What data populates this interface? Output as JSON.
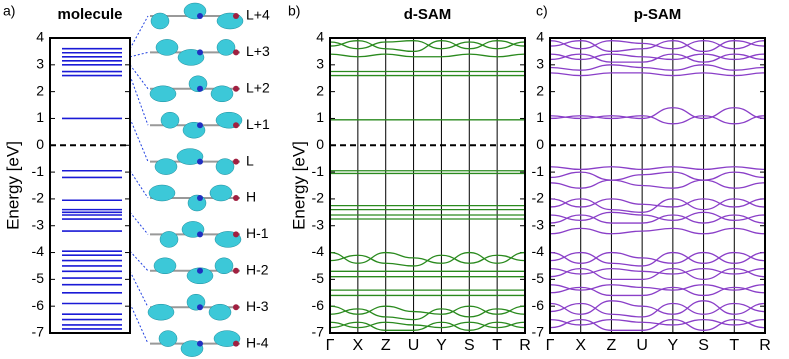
{
  "chart_data": [
    {
      "type": "levels",
      "panel_label": "a)",
      "title": "molecule",
      "ylabel": "Energy [eV]",
      "ylim": [
        -7,
        4
      ],
      "yticks": [
        -7,
        -6,
        -5,
        -4,
        -3,
        -2,
        -1,
        0,
        1,
        2,
        3,
        4
      ],
      "hline": 0,
      "color": "#1a1ad6",
      "values": [
        3.6,
        3.45,
        3.3,
        3.15,
        3.0,
        2.75,
        2.6,
        1.0,
        -0.95,
        -1.2,
        -2.05,
        -2.4,
        -2.5,
        -2.6,
        -2.75,
        -3.2,
        -3.95,
        -4.1,
        -4.3,
        -4.5,
        -4.7,
        -4.95,
        -5.2,
        -5.5,
        -5.9,
        -6.3,
        -6.5,
        -6.7,
        -6.85
      ],
      "orbital_labels": [
        "L+4",
        "L+3",
        "L+2",
        "L+1",
        "L",
        "H",
        "H-1",
        "H-2",
        "H-3",
        "H-4"
      ]
    },
    {
      "type": "bands",
      "panel_label": "b)",
      "title": "d-SAM",
      "ylabel": "Energy [eV]",
      "ylim": [
        -7,
        4
      ],
      "yticks": [
        -7,
        -6,
        -5,
        -4,
        -3,
        -2,
        -1,
        0,
        1,
        2,
        3,
        4
      ],
      "hline": 0,
      "color": "#2a8a1e",
      "categories": [
        "Γ",
        "X",
        "Z",
        "U",
        "Y",
        "S",
        "T",
        "R"
      ],
      "series": [
        {
          "values": [
            3.85,
            3.6,
            3.85,
            3.9,
            3.6,
            3.85,
            3.6,
            3.85
          ]
        },
        {
          "values": [
            3.7,
            3.9,
            3.6,
            3.5,
            3.9,
            3.6,
            3.9,
            3.7
          ]
        },
        {
          "values": [
            3.4,
            3.3,
            3.4,
            3.3,
            3.3,
            3.4,
            3.3,
            3.4
          ]
        },
        {
          "values": [
            2.75,
            2.75,
            2.75,
            2.75,
            2.75,
            2.75,
            2.75,
            2.75
          ]
        },
        {
          "values": [
            2.6,
            2.6,
            2.6,
            2.6,
            2.6,
            2.6,
            2.6,
            2.6
          ]
        },
        {
          "values": [
            0.95,
            0.95,
            0.95,
            0.95,
            0.95,
            0.95,
            0.95,
            0.95
          ]
        },
        {
          "values": [
            -0.95,
            -0.95,
            -0.95,
            -0.95,
            -0.95,
            -0.95,
            -0.95,
            -0.95
          ]
        },
        {
          "values": [
            -1.05,
            -1.05,
            -1.05,
            -1.05,
            -1.05,
            -1.05,
            -1.05,
            -1.05
          ]
        },
        {
          "values": [
            -2.25,
            -2.25,
            -2.25,
            -2.25,
            -2.25,
            -2.25,
            -2.25,
            -2.25
          ]
        },
        {
          "values": [
            -2.4,
            -2.4,
            -2.4,
            -2.4,
            -2.4,
            -2.4,
            -2.4,
            -2.4
          ]
        },
        {
          "values": [
            -2.6,
            -2.6,
            -2.6,
            -2.6,
            -2.6,
            -2.6,
            -2.6,
            -2.6
          ]
        },
        {
          "values": [
            -2.75,
            -2.75,
            -2.75,
            -2.75,
            -2.75,
            -2.75,
            -2.75,
            -2.75
          ]
        },
        {
          "values": [
            -4.0,
            -4.4,
            -4.0,
            -4.2,
            -4.4,
            -4.0,
            -4.4,
            -4.0
          ]
        },
        {
          "values": [
            -4.3,
            -4.1,
            -4.4,
            -4.5,
            -4.1,
            -4.4,
            -4.1,
            -4.3
          ]
        },
        {
          "values": [
            -4.7,
            -4.7,
            -4.7,
            -4.7,
            -4.7,
            -4.7,
            -4.7,
            -4.7
          ]
        },
        {
          "values": [
            -4.9,
            -4.9,
            -4.9,
            -4.9,
            -4.9,
            -4.9,
            -4.9,
            -4.9
          ]
        },
        {
          "values": [
            -5.4,
            -5.4,
            -5.4,
            -5.4,
            -5.4,
            -5.4,
            -5.4,
            -5.4
          ]
        },
        {
          "values": [
            -5.6,
            -5.6,
            -5.6,
            -5.6,
            -5.6,
            -5.6,
            -5.6,
            -5.6
          ]
        },
        {
          "values": [
            -6.0,
            -6.3,
            -6.0,
            -6.2,
            -6.3,
            -6.0,
            -6.3,
            -6.0
          ]
        },
        {
          "values": [
            -6.3,
            -6.1,
            -6.4,
            -6.5,
            -6.1,
            -6.4,
            -6.1,
            -6.3
          ]
        },
        {
          "values": [
            -6.6,
            -6.8,
            -6.6,
            -6.7,
            -6.8,
            -6.6,
            -6.8,
            -6.6
          ]
        },
        {
          "values": [
            -6.8,
            -6.6,
            -6.9,
            -6.9,
            -6.6,
            -6.9,
            -6.6,
            -6.8
          ]
        }
      ]
    },
    {
      "type": "bands",
      "panel_label": "c)",
      "title": "p-SAM",
      "ylim": [
        -7,
        4
      ],
      "yticks": [
        -7,
        -6,
        -5,
        -4,
        -3,
        -2,
        -1,
        0,
        1,
        2,
        3,
        4
      ],
      "hline": 0,
      "color": "#8a3fc8",
      "categories": [
        "Γ",
        "X",
        "Z",
        "U",
        "Y",
        "S",
        "T",
        "R"
      ],
      "series": [
        {
          "values": [
            3.9,
            3.6,
            3.9,
            3.8,
            3.6,
            3.9,
            3.6,
            3.9
          ]
        },
        {
          "values": [
            3.7,
            3.9,
            3.5,
            3.6,
            3.9,
            3.5,
            3.9,
            3.7
          ]
        },
        {
          "values": [
            3.4,
            3.2,
            3.4,
            3.3,
            3.2,
            3.4,
            3.2,
            3.4
          ]
        },
        {
          "values": [
            3.2,
            3.4,
            3.1,
            3.1,
            3.4,
            3.1,
            3.4,
            3.2
          ]
        },
        {
          "values": [
            2.9,
            2.8,
            3.0,
            2.9,
            2.8,
            3.0,
            2.8,
            2.9
          ]
        },
        {
          "values": [
            2.7,
            2.6,
            2.7,
            2.7,
            2.6,
            2.7,
            2.6,
            2.7
          ]
        },
        {
          "values": [
            1.1,
            1.0,
            1.1,
            1.0,
            1.4,
            1.0,
            1.4,
            1.0
          ]
        },
        {
          "values": [
            1.0,
            1.1,
            1.0,
            1.1,
            0.8,
            1.1,
            0.8,
            1.1
          ]
        },
        {
          "values": [
            -0.8,
            -0.9,
            -0.8,
            -0.9,
            -0.8,
            -0.9,
            -0.8,
            -0.9
          ]
        },
        {
          "values": [
            -1.2,
            -1.0,
            -1.3,
            -1.1,
            -1.0,
            -1.3,
            -1.0,
            -1.2
          ]
        },
        {
          "values": [
            -1.4,
            -1.6,
            -1.3,
            -1.5,
            -1.6,
            -1.3,
            -1.6,
            -1.4
          ]
        },
        {
          "values": [
            -2.0,
            -2.3,
            -2.0,
            -2.2,
            -2.3,
            -2.0,
            -2.3,
            -2.0
          ]
        },
        {
          "values": [
            -2.3,
            -2.0,
            -2.4,
            -2.5,
            -2.0,
            -2.4,
            -2.0,
            -2.3
          ]
        },
        {
          "values": [
            -2.6,
            -2.8,
            -2.5,
            -2.6,
            -2.8,
            -2.5,
            -2.8,
            -2.6
          ]
        },
        {
          "values": [
            -2.9,
            -2.6,
            -2.9,
            -2.9,
            -2.6,
            -2.9,
            -2.6,
            -2.9
          ]
        },
        {
          "values": [
            -3.3,
            -3.1,
            -3.3,
            -3.2,
            -3.1,
            -3.3,
            -3.1,
            -3.3
          ]
        },
        {
          "values": [
            -4.0,
            -4.4,
            -4.0,
            -4.2,
            -4.4,
            -4.0,
            -4.4,
            -4.0
          ]
        },
        {
          "values": [
            -4.3,
            -4.0,
            -4.4,
            -4.5,
            -4.0,
            -4.4,
            -4.0,
            -4.3
          ]
        },
        {
          "values": [
            -4.6,
            -4.8,
            -4.6,
            -4.7,
            -4.8,
            -4.6,
            -4.8,
            -4.6
          ]
        },
        {
          "values": [
            -4.9,
            -4.6,
            -5.0,
            -5.0,
            -4.6,
            -5.0,
            -4.6,
            -4.9
          ]
        },
        {
          "values": [
            -5.2,
            -5.4,
            -5.2,
            -5.3,
            -5.4,
            -5.2,
            -5.4,
            -5.2
          ]
        },
        {
          "values": [
            -5.5,
            -5.3,
            -5.6,
            -5.6,
            -5.3,
            -5.6,
            -5.3,
            -5.5
          ]
        },
        {
          "values": [
            -5.9,
            -6.3,
            -5.8,
            -6.0,
            -6.3,
            -5.8,
            -6.3,
            -5.9
          ]
        },
        {
          "values": [
            -6.2,
            -5.9,
            -6.3,
            -6.4,
            -5.9,
            -6.3,
            -5.9,
            -6.2
          ]
        },
        {
          "values": [
            -6.5,
            -6.7,
            -6.5,
            -6.6,
            -6.7,
            -6.5,
            -6.7,
            -6.5
          ]
        },
        {
          "values": [
            -6.8,
            -6.5,
            -6.9,
            -6.9,
            -6.5,
            -6.9,
            -6.5,
            -6.8
          ]
        }
      ]
    }
  ]
}
